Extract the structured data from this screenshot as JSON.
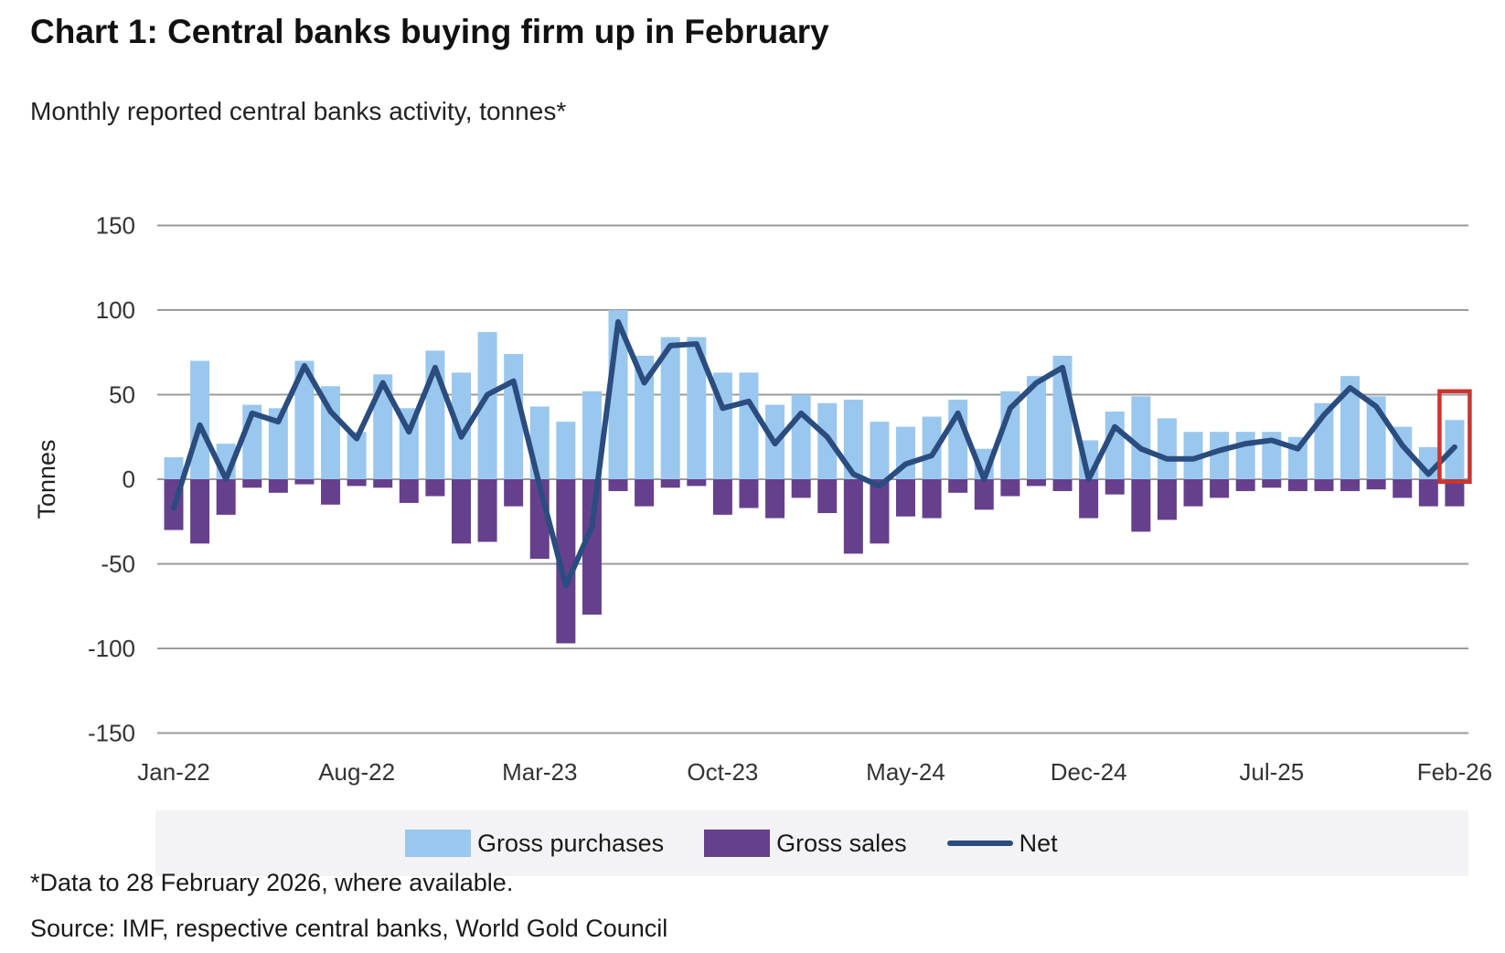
{
  "header": {
    "title": "Chart 1: Central banks buying firm up in February",
    "subtitle": "Monthly reported central banks activity, tonnes*"
  },
  "chart_data": {
    "type": "bar",
    "subtype": "monthly bar + net line combo",
    "title": "Chart 1: Central banks buying firm up in February",
    "xlabel": "",
    "ylabel": "Tonnes",
    "ylim": [
      -150,
      150
    ],
    "ytick_step": 50,
    "ytick_labels": [
      "150",
      "100",
      "50",
      "0",
      "-50",
      "-100",
      "-150"
    ],
    "grid": "horizontal",
    "legend_position": "bottom",
    "categories": [
      "Jan-22",
      "Feb-22",
      "Mar-22",
      "Apr-22",
      "May-22",
      "Jun-22",
      "Jul-22",
      "Aug-22",
      "Sep-22",
      "Oct-22",
      "Nov-22",
      "Dec-22",
      "Jan-23",
      "Feb-23",
      "Mar-23",
      "Apr-23",
      "May-23",
      "Jun-23",
      "Jul-23",
      "Aug-23",
      "Sep-23",
      "Oct-23",
      "Nov-23",
      "Dec-23",
      "Jan-24",
      "Feb-24",
      "Mar-24",
      "Apr-24",
      "May-24",
      "Jun-24",
      "Jul-24",
      "Aug-24",
      "Sep-24",
      "Oct-24",
      "Nov-24",
      "Dec-24",
      "Jan-25",
      "Feb-25",
      "Mar-25",
      "Apr-25",
      "May-25",
      "Jun-25",
      "Jul-25",
      "Aug-25",
      "Sep-25",
      "Oct-25",
      "Nov-25",
      "Dec-25",
      "Jan-26",
      "Feb-26"
    ],
    "x_tick_labels": [
      "Jan-22",
      "Aug-22",
      "Mar-23",
      "Oct-23",
      "May-24",
      "Dec-24",
      "Jul-25",
      "Feb-26"
    ],
    "series": [
      {
        "name": "Gross purchases",
        "type": "bar",
        "color": "#9AC7ED",
        "values": [
          13,
          70,
          21,
          44,
          42,
          70,
          55,
          28,
          62,
          42,
          76,
          63,
          87,
          74,
          43,
          34,
          52,
          100,
          73,
          84,
          84,
          63,
          63,
          44,
          50,
          45,
          47,
          34,
          31,
          37,
          47,
          18,
          52,
          61,
          73,
          23,
          40,
          49,
          36,
          28,
          28,
          28,
          28,
          25,
          45,
          61,
          49,
          31,
          19,
          35
        ]
      },
      {
        "name": "Gross sales",
        "type": "bar",
        "color": "#66408C",
        "values": [
          -30,
          -38,
          -21,
          -5,
          -8,
          -3,
          -15,
          -4,
          -5,
          -14,
          -10,
          -38,
          -37,
          -16,
          -47,
          -97,
          -80,
          -7,
          -16,
          -5,
          -4,
          -21,
          -17,
          -23,
          -11,
          -20,
          -44,
          -38,
          -22,
          -23,
          -8,
          -18,
          -10,
          -4,
          -7,
          -23,
          -9,
          -31,
          -24,
          -16,
          -11,
          -7,
          -5,
          -7,
          -7,
          -7,
          -6,
          -11,
          -16,
          -16
        ]
      },
      {
        "name": "Net",
        "type": "line",
        "color": "#2B4C7E",
        "values": [
          -17,
          32,
          0,
          39,
          34,
          67,
          40,
          24,
          57,
          28,
          66,
          25,
          50,
          58,
          -4,
          -63,
          -28,
          93,
          57,
          79,
          80,
          42,
          46,
          21,
          39,
          25,
          3,
          -4,
          9,
          14,
          39,
          0,
          42,
          57,
          66,
          0,
          31,
          18,
          12,
          12,
          17,
          21,
          23,
          18,
          38,
          54,
          43,
          20,
          3,
          19
        ]
      }
    ],
    "highlight": {
      "category": "Feb-26",
      "color": "#C9362E",
      "note": "red box around final month bar"
    },
    "gridline_color": "#9b9b9b"
  },
  "legend": {
    "purchases": {
      "label": "Gross purchases",
      "color": "#9AC7ED"
    },
    "sales": {
      "label": "Gross sales",
      "color": "#66408C"
    },
    "net": {
      "label": "Net",
      "color": "#2B4C7E"
    }
  },
  "footnotes": {
    "data_note": "*Data to 28 February 2026, where available.",
    "source": "Source: IMF, respective central banks, World Gold Council"
  }
}
